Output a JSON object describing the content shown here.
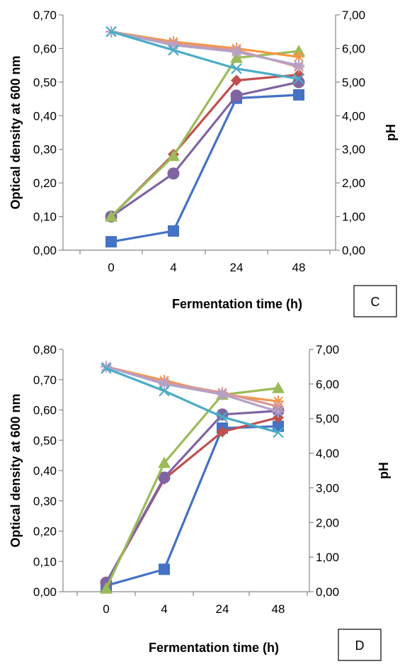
{
  "chart_data": [
    {
      "type": "line",
      "panel_label": "C",
      "categories": [
        "0",
        "4",
        "24",
        "48"
      ],
      "xlabel": "Fermentation time (h)",
      "ylabel": "Optical density at 600 nm",
      "y2label": "pH",
      "ylim": [
        0,
        0.7
      ],
      "y2lim": [
        0,
        7
      ],
      "yticks": [
        "0,00",
        "0,10",
        "0,20",
        "0,30",
        "0,40",
        "0,50",
        "0,60",
        "0,70"
      ],
      "y2ticks": [
        "0,00",
        "1,00",
        "2,00",
        "3,00",
        "4,00",
        "5,00",
        "6,00",
        "7,00"
      ],
      "grid": false,
      "series": [
        {
          "axis": "left",
          "color": "#4472C4",
          "marker": "square",
          "values": [
            0.025,
            0.057,
            0.452,
            0.462
          ]
        },
        {
          "axis": "left",
          "color": "#C0504D",
          "marker": "diamond",
          "values": [
            0.1,
            0.285,
            0.505,
            0.522
          ]
        },
        {
          "axis": "left",
          "color": "#8064A2",
          "marker": "circle",
          "values": [
            0.1,
            0.228,
            0.46,
            0.5
          ]
        },
        {
          "axis": "left",
          "color": "#9BBB59",
          "marker": "triangle",
          "values": [
            0.1,
            0.28,
            0.572,
            0.592
          ]
        },
        {
          "axis": "right",
          "color": "#F79646",
          "marker": "star",
          "values": [
            6.5,
            6.2,
            6.0,
            5.75
          ]
        },
        {
          "axis": "right",
          "color": "#D99795",
          "marker": "star",
          "values": [
            6.5,
            6.15,
            5.95,
            5.45
          ]
        },
        {
          "axis": "right",
          "color": "#B3A2C7",
          "marker": "star",
          "values": [
            6.5,
            6.1,
            5.9,
            5.5
          ]
        },
        {
          "axis": "right",
          "color": "#4BACC6",
          "marker": "x",
          "values": [
            6.5,
            5.95,
            5.4,
            5.1
          ]
        }
      ]
    },
    {
      "type": "line",
      "panel_label": "D",
      "categories": [
        "0",
        "4",
        "24",
        "48"
      ],
      "xlabel": "Fermentation time (h)",
      "ylabel": "Optical density at 600 nm",
      "y2label": "pH",
      "ylim": [
        0,
        0.8
      ],
      "y2lim": [
        0,
        7
      ],
      "yticks": [
        "0,00",
        "0,10",
        "0,20",
        "0,30",
        "0,40",
        "0,50",
        "0,60",
        "0,70",
        "0,80"
      ],
      "y2ticks": [
        "0,00",
        "1,00",
        "2,00",
        "3,00",
        "4,00",
        "5,00",
        "6,00",
        "7,00"
      ],
      "grid": false,
      "series": [
        {
          "axis": "left",
          "color": "#4472C4",
          "marker": "square",
          "values": [
            0.02,
            0.074,
            0.54,
            0.546
          ]
        },
        {
          "axis": "left",
          "color": "#C0504D",
          "marker": "diamond",
          "values": [
            0.028,
            0.372,
            0.528,
            0.575
          ]
        },
        {
          "axis": "left",
          "color": "#8064A2",
          "marker": "circle",
          "values": [
            0.03,
            0.377,
            0.585,
            0.597
          ]
        },
        {
          "axis": "left",
          "color": "#9BBB59",
          "marker": "triangle",
          "values": [
            0.01,
            0.425,
            0.65,
            0.672
          ]
        },
        {
          "axis": "right",
          "color": "#F79646",
          "marker": "star",
          "values": [
            6.5,
            6.1,
            5.7,
            5.5
          ]
        },
        {
          "axis": "right",
          "color": "#D99795",
          "marker": "star",
          "values": [
            6.5,
            6.05,
            5.75,
            5.35
          ]
        },
        {
          "axis": "right",
          "color": "#B3A2C7",
          "marker": "star",
          "values": [
            6.5,
            6.0,
            5.7,
            5.2
          ]
        },
        {
          "axis": "right",
          "color": "#4BACC6",
          "marker": "x",
          "values": [
            6.45,
            5.8,
            5.05,
            4.6
          ]
        }
      ]
    }
  ]
}
